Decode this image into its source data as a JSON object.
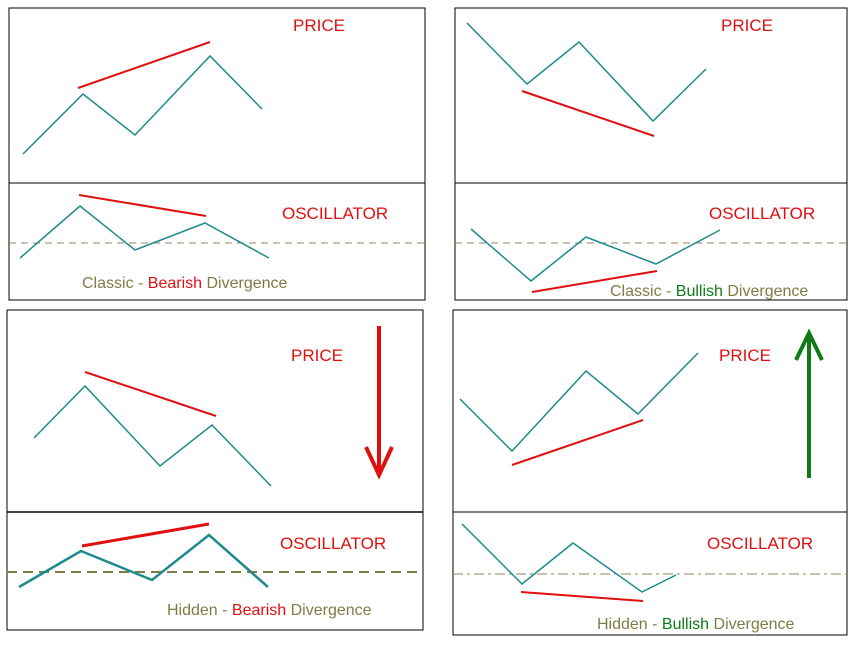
{
  "colors": {
    "teal": "#1f8a8c",
    "red": "#e01010",
    "olive": "#7d7d45",
    "green": "#0f7a14",
    "dashed": "#8a8a60",
    "border": "#000000"
  },
  "panels": [
    {
      "id": "classic-bearish",
      "price_label": "PRICE",
      "oscillator_label": "OSCILLATOR",
      "caption": {
        "part1": "Classic",
        "sep": " - ",
        "keyword": "Bearish",
        "part2": " Divergence",
        "keyword_color": "red"
      }
    },
    {
      "id": "classic-bullish",
      "price_label": "PRICE",
      "oscillator_label": "OSCILLATOR",
      "caption": {
        "part1": "Classic",
        "sep": " - ",
        "keyword": "Bullish",
        "part2": " Divergence",
        "keyword_color": "green"
      }
    },
    {
      "id": "hidden-bearish",
      "price_label": "PRICE",
      "oscillator_label": "OSCILLATOR",
      "caption": {
        "part1": "Hidden",
        "sep": " - ",
        "keyword": "Bearish",
        "part2": " Divergence",
        "keyword_color": "red"
      },
      "arrow": "down-red-arrow"
    },
    {
      "id": "hidden-bullish",
      "price_label": "PRICE",
      "oscillator_label": "OSCILLATOR",
      "caption": {
        "part1": "Hidden",
        "sep": " - ",
        "keyword": "Bullish",
        "part2": " Divergence",
        "keyword_color": "green"
      },
      "arrow": "up-green-arrow"
    }
  ]
}
